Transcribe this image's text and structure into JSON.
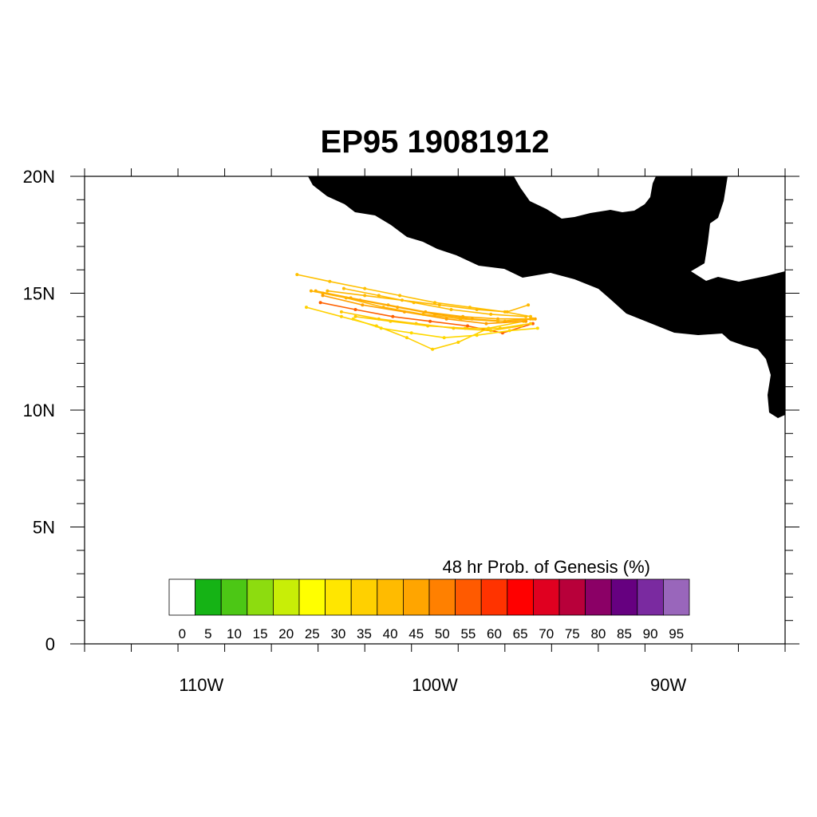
{
  "title": "EP95 19081912",
  "map": {
    "lon_range": [
      -115,
      -85
    ],
    "lat_range": [
      0,
      20
    ],
    "x_tick_labels": [
      {
        "lon": -110,
        "label": "110W"
      },
      {
        "lon": -100,
        "label": "100W"
      },
      {
        "lon": -90,
        "label": "90W"
      }
    ],
    "y_tick_labels": [
      {
        "lat": 0,
        "label": "0"
      },
      {
        "lat": 5,
        "label": "5N"
      },
      {
        "lat": 10,
        "label": "10N"
      },
      {
        "lat": 15,
        "label": "15N"
      },
      {
        "lat": 20,
        "label": "20N"
      }
    ],
    "land_color": "#d3d3d3"
  },
  "colorbar": {
    "title": "48 hr Prob. of Genesis (%)",
    "labels": [
      "0",
      "5",
      "10",
      "15",
      "20",
      "25",
      "30",
      "35",
      "40",
      "45",
      "50",
      "55",
      "60",
      "65",
      "70",
      "75",
      "80",
      "85",
      "90",
      "95"
    ],
    "colors": [
      "#ffffff",
      "#15b315",
      "#4cc715",
      "#8ddc0f",
      "#c8ee07",
      "#ffff00",
      "#ffe600",
      "#ffd000",
      "#ffbb00",
      "#ffa500",
      "#ff8000",
      "#ff5a00",
      "#ff3300",
      "#ff0000",
      "#e00020",
      "#b8003a",
      "#8b0066",
      "#660080",
      "#7a2aa0",
      "#9966bb"
    ]
  },
  "tracks": [
    {
      "color": "#ffc000",
      "points": [
        [
          -105.9,
          15.8
        ],
        [
          -104.5,
          15.5
        ],
        [
          -103,
          15.2
        ],
        [
          -101.5,
          14.9
        ],
        [
          -100,
          14.6
        ],
        [
          -98.5,
          14.4
        ],
        [
          -97,
          14.2
        ],
        [
          -95.9,
          14.0
        ]
      ]
    },
    {
      "color": "#ffb000",
      "points": [
        [
          -105.1,
          15.1
        ],
        [
          -103.6,
          14.8
        ],
        [
          -102,
          14.5
        ],
        [
          -100.4,
          14.2
        ],
        [
          -98.8,
          14.0
        ],
        [
          -97.3,
          13.9
        ],
        [
          -95.9,
          13.9
        ]
      ]
    },
    {
      "color": "#ff6000",
      "points": [
        [
          -104.9,
          14.6
        ],
        [
          -103.4,
          14.3
        ],
        [
          -101.8,
          14.0
        ],
        [
          -100.2,
          13.8
        ],
        [
          -98.6,
          13.6
        ],
        [
          -97.1,
          13.3
        ],
        [
          -95.8,
          13.7
        ]
      ]
    },
    {
      "color": "#ffd000",
      "points": [
        [
          -105.5,
          14.4
        ],
        [
          -104,
          14.0
        ],
        [
          -102.5,
          13.6
        ],
        [
          -101.2,
          13.1
        ],
        [
          -100.1,
          12.6
        ],
        [
          -99,
          12.9
        ],
        [
          -97.7,
          13.5
        ],
        [
          -96.2,
          13.8
        ]
      ]
    },
    {
      "color": "#ffa800",
      "points": [
        [
          -104.8,
          15.0
        ],
        [
          -103.2,
          14.7
        ],
        [
          -101.6,
          14.4
        ],
        [
          -100,
          14.1
        ],
        [
          -98.4,
          13.9
        ],
        [
          -97,
          13.8
        ],
        [
          -95.7,
          13.9
        ]
      ]
    },
    {
      "color": "#ffb800",
      "points": [
        [
          -104.6,
          15.1
        ],
        [
          -103,
          14.9
        ],
        [
          -101.4,
          14.7
        ],
        [
          -99.8,
          14.5
        ],
        [
          -98.2,
          14.3
        ],
        [
          -96.9,
          14.2
        ],
        [
          -96,
          14.5
        ]
      ]
    },
    {
      "color": "#ffc800",
      "points": [
        [
          -104,
          14.2
        ],
        [
          -102.4,
          13.9
        ],
        [
          -100.8,
          13.7
        ],
        [
          -99.2,
          13.5
        ],
        [
          -97.6,
          13.4
        ],
        [
          -96.3,
          13.6
        ]
      ]
    },
    {
      "color": "#ffa000",
      "points": [
        [
          -104.8,
          14.9
        ],
        [
          -103.1,
          14.5
        ],
        [
          -101.3,
          14.2
        ],
        [
          -99.5,
          13.9
        ],
        [
          -97.8,
          13.7
        ],
        [
          -96.1,
          13.8
        ]
      ]
    },
    {
      "color": "#ffd800",
      "points": [
        [
          -103.5,
          13.9
        ],
        [
          -102.3,
          13.5
        ],
        [
          -101,
          13.3
        ],
        [
          -99.6,
          13.1
        ],
        [
          -98.2,
          13.2
        ],
        [
          -96.8,
          13.4
        ],
        [
          -95.6,
          13.5
        ]
      ]
    },
    {
      "color": "#ffb400",
      "points": [
        [
          -105.3,
          15.1
        ],
        [
          -103.8,
          14.8
        ],
        [
          -102.2,
          14.4
        ],
        [
          -100.5,
          14.1
        ],
        [
          -98.9,
          13.9
        ],
        [
          -97.3,
          13.8
        ],
        [
          -95.8,
          13.9
        ]
      ]
    },
    {
      "color": "#ffbc00",
      "points": [
        [
          -103.9,
          15.2
        ],
        [
          -102.4,
          14.9
        ],
        [
          -100.9,
          14.6
        ],
        [
          -99.3,
          14.3
        ],
        [
          -97.6,
          14.1
        ],
        [
          -96.1,
          14.0
        ]
      ]
    },
    {
      "color": "#ffcc00",
      "points": [
        [
          -103.4,
          14.0
        ],
        [
          -101.9,
          13.8
        ],
        [
          -100.3,
          13.6
        ],
        [
          -98.7,
          13.5
        ],
        [
          -97.2,
          13.5
        ],
        [
          -95.9,
          13.7
        ]
      ]
    }
  ]
}
